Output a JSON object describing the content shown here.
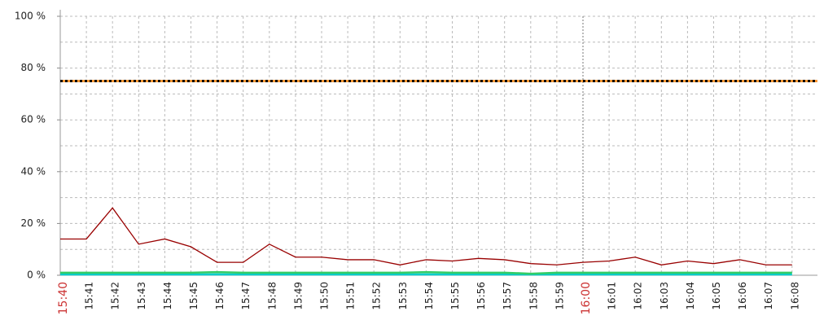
{
  "chart_data": {
    "type": "line",
    "categories": [
      "15:40",
      "15:41",
      "15:42",
      "15:43",
      "15:44",
      "15:45",
      "15:46",
      "15:47",
      "15:48",
      "15:49",
      "15:50",
      "15:51",
      "15:52",
      "15:53",
      "15:54",
      "15:55",
      "15:56",
      "15:57",
      "15:58",
      "15:59",
      "16:00",
      "16:01",
      "16:02",
      "16:03",
      "16:04",
      "16:05",
      "16:06",
      "16:07",
      "16:08"
    ],
    "highlight_categories": [
      "15:40",
      "16:00"
    ],
    "highlight_color": "#cc3333",
    "series": [
      {
        "color": "#990000",
        "values": [
          14,
          14,
          26,
          12,
          14,
          11,
          5,
          5,
          12,
          7,
          7,
          6,
          6,
          4,
          6,
          5.5,
          6.5,
          6,
          4.5,
          4,
          5,
          5.5,
          7,
          4,
          5.5,
          4.5,
          6,
          4,
          4
        ]
      },
      {
        "color": "#33cc66",
        "values": [
          1,
          1,
          1,
          1,
          1,
          1,
          1.2,
          1,
          1,
          1,
          1,
          1,
          1,
          1,
          1.2,
          1,
          1,
          1,
          0.6,
          1,
          1,
          1,
          1,
          1,
          1,
          1,
          1,
          1,
          1
        ]
      },
      {
        "color": "#00cccc",
        "values": [
          0.3,
          0.3,
          0.3,
          0.3,
          0.3,
          0.3,
          0.3,
          0.3,
          0.3,
          0.3,
          0.3,
          0.3,
          0.3,
          0.3,
          0.3,
          0.3,
          0.3,
          0.3,
          0.3,
          0.3,
          0.3,
          0.3,
          0.3,
          0.3,
          0.3,
          0.3,
          0.3,
          0.3,
          0.3
        ]
      }
    ],
    "threshold": {
      "value": 75,
      "color": "#ff9933",
      "dash_color": "#000000"
    },
    "ylim": [
      0,
      100
    ],
    "yticks": [
      {
        "value": 0,
        "label": "0 %"
      },
      {
        "value": 20,
        "label": "20 %"
      },
      {
        "value": 40,
        "label": "40 %"
      },
      {
        "value": 60,
        "label": "60 %"
      },
      {
        "value": 80,
        "label": "80 %"
      },
      {
        "value": 100,
        "label": "100 %"
      }
    ],
    "minor_yticks": [
      10,
      30,
      50,
      70,
      90
    ],
    "grid": true
  }
}
